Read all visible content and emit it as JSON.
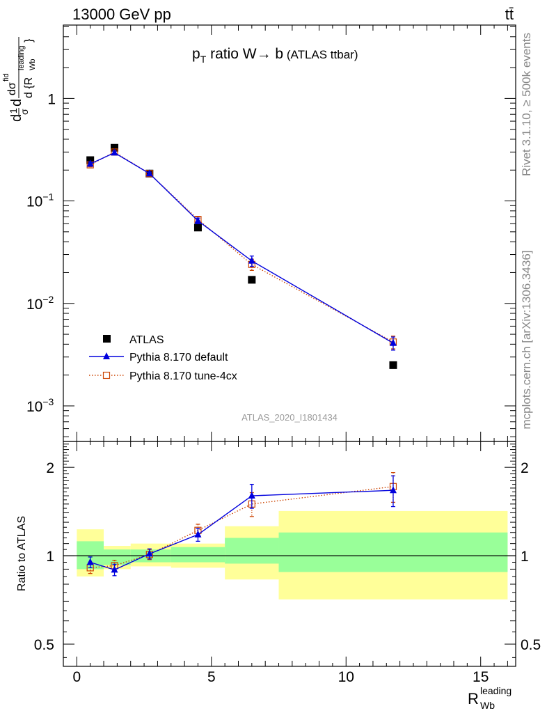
{
  "header": {
    "energy_label": "13000 GeV pp",
    "process_label": "tt̄"
  },
  "side": {
    "rivet_label": "Rivet 3.1.10, ≥ 500k events",
    "mcplots_label": "mcplots.cern.ch [arXiv:1306.3436]"
  },
  "colors": {
    "data": "#000000",
    "pythia_default": "#0000dd",
    "pythia_tune": "#cc4400",
    "band_inner": "#99ff99",
    "band_outer": "#ffff99"
  },
  "chart_data": [
    {
      "type": "scatter",
      "panel": "main",
      "title": "p_T ratio W → b (ATLAS ttbar)",
      "title_parts": {
        "p": "p",
        "sub": "T",
        "rest": " ratio W",
        "arrow": "→",
        "b": " b",
        "small": " (ATLAS ttbar)"
      },
      "ylabel": "dσ/d{R_Wb^leading} · 1/σ",
      "ylabel_parts": {
        "d1": "d",
        "sigma_top": "1",
        "sigma_bot": "σ",
        "d2": "d",
        "num": "dσ",
        "num_sup": "fid",
        "den": "d {R",
        "den_sup": "leading",
        "den_sub": "Wb",
        "den_close": "}"
      },
      "yscale": "log",
      "ylim": [
        0.00045,
        5.2
      ],
      "xlim": [
        -0.5,
        16.3
      ],
      "yticks": [
        {
          "value": 0.001,
          "base": "10",
          "exp": "−3"
        },
        {
          "value": 0.01,
          "base": "10",
          "exp": "−2"
        },
        {
          "value": 0.1,
          "base": "10",
          "exp": "−1"
        },
        {
          "value": 1,
          "label": "1"
        }
      ],
      "watermark": "ATLAS_2020_I1801434",
      "legend_position": "bottom-left",
      "series": [
        {
          "name": "ATLAS",
          "style": "data",
          "x": [
            0.5,
            1.4,
            2.7,
            4.5,
            6.5,
            11.75
          ],
          "y": [
            0.25,
            0.33,
            0.185,
            0.055,
            0.017,
            0.0025
          ]
        },
        {
          "name": "Pythia 8.170 default",
          "style": "default",
          "x": [
            0.5,
            1.4,
            2.7,
            4.5,
            6.5,
            11.75
          ],
          "y": [
            0.23,
            0.295,
            0.185,
            0.064,
            0.026,
            0.0041
          ],
          "err": [
            0.01,
            0.012,
            0.006,
            0.004,
            0.003,
            0.0006
          ]
        },
        {
          "name": "Pythia 8.170 tune-4cx",
          "style": "tune",
          "x": [
            0.5,
            1.4,
            2.7,
            4.5,
            6.5,
            11.75
          ],
          "y": [
            0.225,
            0.3,
            0.185,
            0.066,
            0.024,
            0.0042
          ],
          "err": [
            0.01,
            0.012,
            0.006,
            0.004,
            0.003,
            0.0006
          ]
        }
      ]
    },
    {
      "type": "scatter",
      "panel": "ratio",
      "ylabel": "Ratio to ATLAS",
      "xlabel": "R",
      "xlabel_sup": "leading",
      "xlabel_sub": "Wb",
      "yscale": "log",
      "ylim": [
        0.42,
        2.45
      ],
      "xlim": [
        -0.5,
        16.3
      ],
      "xticks": [
        0,
        5,
        10,
        15
      ],
      "yticks": [
        0.5,
        1,
        2
      ],
      "bands": [
        {
          "x0": 0,
          "x1": 1,
          "inner": [
            0.9,
            1.12
          ],
          "outer": [
            0.85,
            1.23
          ]
        },
        {
          "x0": 1,
          "x1": 2,
          "inner": [
            0.93,
            1.05
          ],
          "outer": [
            0.9,
            1.08
          ]
        },
        {
          "x0": 2,
          "x1": 3.5,
          "inner": [
            0.95,
            1.05
          ],
          "outer": [
            0.92,
            1.1
          ]
        },
        {
          "x0": 3.5,
          "x1": 5.5,
          "inner": [
            0.95,
            1.07
          ],
          "outer": [
            0.91,
            1.1
          ]
        },
        {
          "x0": 5.5,
          "x1": 7.5,
          "inner": [
            0.94,
            1.15
          ],
          "outer": [
            0.83,
            1.26
          ]
        },
        {
          "x0": 7.5,
          "x1": 16,
          "inner": [
            0.88,
            1.2
          ],
          "outer": [
            0.71,
            1.42
          ]
        }
      ],
      "series": [
        {
          "name": "Pythia 8.170 default",
          "style": "default",
          "x": [
            0.5,
            1.4,
            2.7,
            4.5,
            6.5,
            11.75
          ],
          "y": [
            0.95,
            0.895,
            1.015,
            1.18,
            1.6,
            1.67
          ],
          "err": [
            0.04,
            0.04,
            0.04,
            0.06,
            0.15,
            0.2
          ]
        },
        {
          "name": "Pythia 8.170 tune-4cx",
          "style": "tune",
          "x": [
            0.5,
            1.4,
            2.7,
            4.5,
            6.5,
            11.75
          ],
          "y": [
            0.91,
            0.925,
            1.01,
            1.22,
            1.5,
            1.72
          ],
          "err": [
            0.04,
            0.04,
            0.04,
            0.06,
            0.14,
            0.2
          ]
        }
      ]
    }
  ]
}
